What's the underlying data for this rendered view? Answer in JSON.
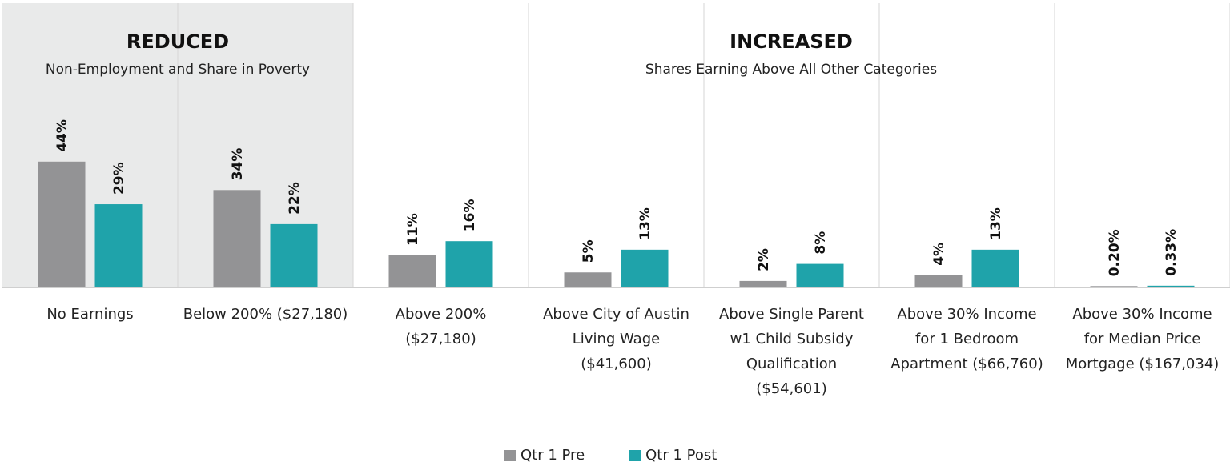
{
  "sections": {
    "reduced": {
      "title": "REDUCED",
      "subtitle": "Non-Employment and Share in Poverty"
    },
    "increased": {
      "title": "INCREASED",
      "subtitle": "Shares Earning Above All Other Categories"
    }
  },
  "colors": {
    "pre": "#939395",
    "post": "#1fa3aa",
    "reduced_bg": "#e9eaea",
    "divider": "#d6d6d6",
    "baseline": "#cfcfcf"
  },
  "chart_data": {
    "type": "bar",
    "categories": [
      [
        "No Earnings"
      ],
      [
        "Below 200% ($27,180)"
      ],
      [
        "Above 200%",
        "($27,180)"
      ],
      [
        "Above City of Austin",
        "Living Wage",
        "($41,600)"
      ],
      [
        "Above Single Parent",
        "w1 Child Subsidy",
        "Qualification",
        "($54,601)"
      ],
      [
        "Above 30% Income",
        "for 1 Bedroom",
        "Apartment ($66,760)"
      ],
      [
        "Above 30% Income",
        "for Median Price",
        "Mortgage ($167,034)"
      ]
    ],
    "series": [
      {
        "name": "Qtr 1 Pre",
        "values": [
          44,
          34,
          11,
          5,
          2,
          4,
          0.2
        ],
        "labels": [
          "44%",
          "34%",
          "11%",
          "5%",
          "2%",
          "4%",
          "0.20%"
        ]
      },
      {
        "name": "Qtr 1 Post",
        "values": [
          29,
          22,
          16,
          13,
          8,
          13,
          0.33
        ],
        "labels": [
          "29%",
          "22%",
          "16%",
          "13%",
          "8%",
          "13%",
          "0.33%"
        ]
      }
    ],
    "ylim": [
      0,
      44
    ],
    "grid": false,
    "legend_position": "bottom"
  }
}
